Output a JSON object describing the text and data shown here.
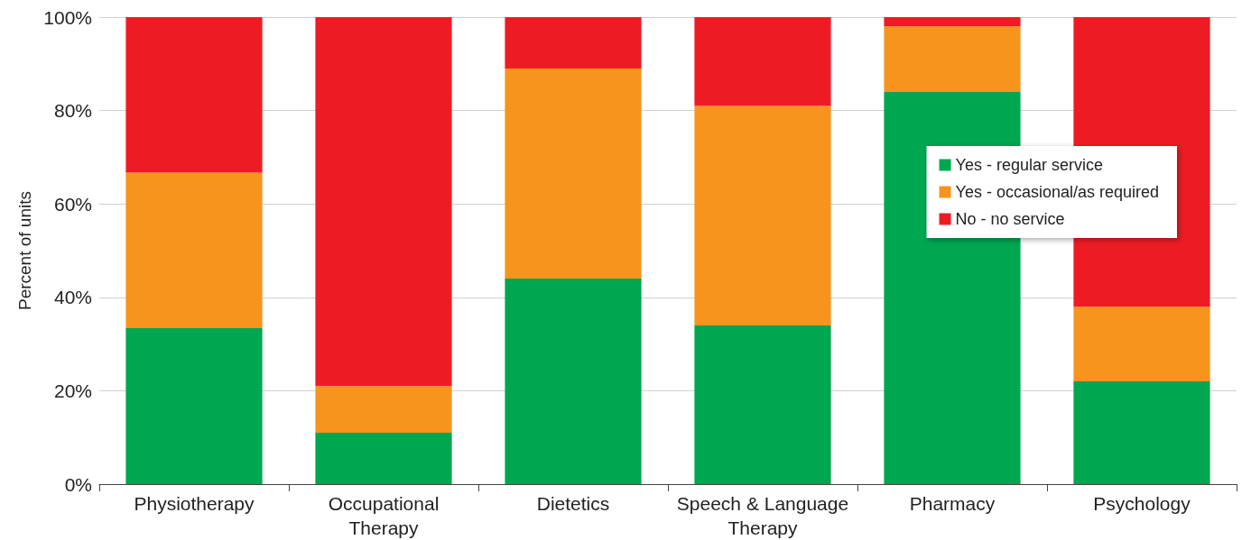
{
  "chart_data": {
    "type": "bar",
    "stacked": true,
    "ylabel": "Percent of units",
    "categories": [
      "Physiotherapy",
      "Occupational Therapy",
      "Dietetics",
      "Speech & Language Therapy",
      "Pharmacy",
      "Psychology"
    ],
    "series": [
      {
        "name": "Yes - regular service",
        "color": "#00a650",
        "values": [
          33.4,
          11,
          44,
          34,
          84,
          22
        ]
      },
      {
        "name": "Yes - occasional/as required",
        "color": "#f7941d",
        "values": [
          33.3,
          10,
          45,
          47,
          14,
          16
        ]
      },
      {
        "name": "No - no service",
        "color": "#ed1c24",
        "values": [
          33.3,
          79,
          11,
          19,
          2,
          62
        ]
      }
    ],
    "ylim": [
      0,
      100
    ],
    "yticks": [
      {
        "value": 0,
        "label": "0%"
      },
      {
        "value": 20,
        "label": "20%"
      },
      {
        "value": 40,
        "label": "40%"
      },
      {
        "value": 60,
        "label": "60%"
      },
      {
        "value": 80,
        "label": "80%"
      },
      {
        "value": 100,
        "label": "100%"
      }
    ],
    "grid": "y",
    "legend": "right"
  }
}
